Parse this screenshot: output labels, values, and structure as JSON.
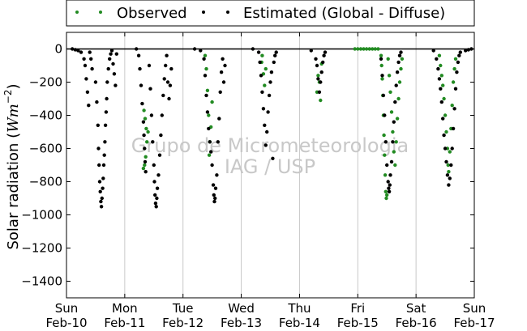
{
  "chart_data": {
    "type": "scatter",
    "title": "",
    "xlabel": "",
    "ylabel": "Solar radiation",
    "ylabel_unit_base": "Wm",
    "ylabel_unit_exp": "−2",
    "ylim": [
      -1500,
      100
    ],
    "yticks": [
      0,
      -200,
      -400,
      -600,
      -800,
      -1000,
      -1200,
      -1400
    ],
    "xlim_days": [
      0,
      7
    ],
    "xticks": [
      {
        "day": "Sun",
        "date": "Feb-10"
      },
      {
        "day": "Mon",
        "date": "Feb-11"
      },
      {
        "day": "Tue",
        "date": "Feb-12"
      },
      {
        "day": "Wed",
        "date": "Feb-13"
      },
      {
        "day": "Thu",
        "date": "Feb-14"
      },
      {
        "day": "Fri",
        "date": "Feb-15"
      },
      {
        "day": "Sat",
        "date": "Feb-16"
      },
      {
        "day": "Sun",
        "date": "Feb-17"
      }
    ],
    "grid": "vertical",
    "legend": "top",
    "watermark": [
      "Grupo de Micrometeorologia",
      "IAG / USP"
    ],
    "series": [
      {
        "name": "Observed",
        "color": "#228b22",
        "marker": "dot",
        "points": [
          [
            1.33,
            -370
          ],
          [
            1.35,
            -420
          ],
          [
            1.37,
            -480
          ],
          [
            1.34,
            -700
          ],
          [
            1.36,
            -650
          ],
          [
            1.38,
            -560
          ],
          [
            1.4,
            -500
          ],
          [
            1.32,
            -720
          ],
          [
            2.38,
            -40
          ],
          [
            2.4,
            -120
          ],
          [
            2.42,
            -250
          ],
          [
            2.44,
            -400
          ],
          [
            2.46,
            -560
          ],
          [
            2.45,
            -640
          ],
          [
            2.48,
            -470
          ],
          [
            2.5,
            -320
          ],
          [
            3.35,
            -80
          ],
          [
            3.38,
            -150
          ],
          [
            3.4,
            -220
          ],
          [
            3.42,
            -120
          ],
          [
            3.36,
            -40
          ],
          [
            4.32,
            -160
          ],
          [
            4.34,
            -200
          ],
          [
            4.36,
            -310
          ],
          [
            4.3,
            -260
          ],
          [
            4.38,
            -90
          ],
          [
            4.95,
            0
          ],
          [
            5.0,
            0
          ],
          [
            5.05,
            0
          ],
          [
            5.1,
            0
          ],
          [
            5.15,
            0
          ],
          [
            5.2,
            0
          ],
          [
            5.25,
            0
          ],
          [
            5.3,
            0
          ],
          [
            5.35,
            0
          ],
          [
            5.4,
            -40
          ],
          [
            5.41,
            -100
          ],
          [
            5.42,
            -180
          ],
          [
            5.43,
            -280
          ],
          [
            5.44,
            -400
          ],
          [
            5.45,
            -520
          ],
          [
            5.46,
            -640
          ],
          [
            5.47,
            -760
          ],
          [
            5.48,
            -860
          ],
          [
            5.49,
            -900
          ],
          [
            5.5,
            -880
          ],
          [
            5.52,
            -60
          ],
          [
            5.54,
            -160
          ],
          [
            5.56,
            -260
          ],
          [
            5.58,
            -380
          ],
          [
            5.6,
            -500
          ],
          [
            5.62,
            -620
          ],
          [
            5.64,
            -700
          ],
          [
            5.66,
            -560
          ],
          [
            5.68,
            -420
          ],
          [
            5.7,
            -300
          ],
          [
            5.72,
            -200
          ],
          [
            5.74,
            -120
          ],
          [
            5.76,
            -60
          ],
          [
            6.4,
            -40
          ],
          [
            6.42,
            -100
          ],
          [
            6.44,
            -160
          ],
          [
            6.46,
            -220
          ],
          [
            6.48,
            -300
          ],
          [
            6.5,
            -400
          ],
          [
            6.52,
            -500
          ],
          [
            6.54,
            -600
          ],
          [
            6.55,
            -700
          ],
          [
            6.56,
            -740
          ],
          [
            6.58,
            -620
          ],
          [
            6.6,
            -480
          ],
          [
            6.62,
            -340
          ],
          [
            6.64,
            -200
          ],
          [
            6.66,
            -120
          ],
          [
            6.68,
            -60
          ]
        ]
      },
      {
        "name": "Estimated (Global - Diffuse)",
        "color": "#000000",
        "marker": "dot",
        "points": [
          [
            0.1,
            0
          ],
          [
            0.15,
            -5
          ],
          [
            0.2,
            -10
          ],
          [
            0.25,
            -20
          ],
          [
            0.3,
            -60
          ],
          [
            0.32,
            -100
          ],
          [
            0.34,
            -180
          ],
          [
            0.36,
            -260
          ],
          [
            0.38,
            -340
          ],
          [
            0.4,
            -20
          ],
          [
            0.42,
            -60
          ],
          [
            0.44,
            -120
          ],
          [
            0.5,
            -200
          ],
          [
            0.52,
            -320
          ],
          [
            0.54,
            -460
          ],
          [
            0.55,
            -600
          ],
          [
            0.56,
            -700
          ],
          [
            0.57,
            -800
          ],
          [
            0.58,
            -860
          ],
          [
            0.59,
            -920
          ],
          [
            0.6,
            -950
          ],
          [
            0.61,
            -900
          ],
          [
            0.62,
            -840
          ],
          [
            0.63,
            -780
          ],
          [
            0.64,
            -700
          ],
          [
            0.65,
            -640
          ],
          [
            0.66,
            -560
          ],
          [
            0.67,
            -460
          ],
          [
            0.68,
            -380
          ],
          [
            0.69,
            -300
          ],
          [
            0.7,
            -200
          ],
          [
            0.72,
            -120
          ],
          [
            0.74,
            -60
          ],
          [
            0.76,
            -30
          ],
          [
            0.78,
            -10
          ],
          [
            0.8,
            -90
          ],
          [
            0.82,
            -150
          ],
          [
            0.84,
            -220
          ],
          [
            0.86,
            -30
          ],
          [
            1.2,
            0
          ],
          [
            1.24,
            -40
          ],
          [
            1.26,
            -120
          ],
          [
            1.28,
            -220
          ],
          [
            1.3,
            -330
          ],
          [
            1.32,
            -440
          ],
          [
            1.33,
            -520
          ],
          [
            1.34,
            -600
          ],
          [
            1.35,
            -680
          ],
          [
            1.36,
            -740
          ],
          [
            1.42,
            -100
          ],
          [
            1.44,
            -240
          ],
          [
            1.46,
            -400
          ],
          [
            1.48,
            -560
          ],
          [
            1.5,
            -700
          ],
          [
            1.51,
            -800
          ],
          [
            1.52,
            -880
          ],
          [
            1.53,
            -930
          ],
          [
            1.54,
            -950
          ],
          [
            1.55,
            -900
          ],
          [
            1.56,
            -840
          ],
          [
            1.58,
            -760
          ],
          [
            1.6,
            -640
          ],
          [
            1.62,
            -520
          ],
          [
            1.64,
            -400
          ],
          [
            1.66,
            -280
          ],
          [
            1.68,
            -180
          ],
          [
            1.7,
            -100
          ],
          [
            1.72,
            -40
          ],
          [
            1.74,
            -200
          ],
          [
            1.76,
            -300
          ],
          [
            1.78,
            -220
          ],
          [
            1.8,
            -120
          ],
          [
            2.2,
            0
          ],
          [
            2.3,
            -10
          ],
          [
            2.36,
            -60
          ],
          [
            2.38,
            -160
          ],
          [
            2.4,
            -280
          ],
          [
            2.42,
            -380
          ],
          [
            2.44,
            -480
          ],
          [
            2.46,
            -560
          ],
          [
            2.48,
            -620
          ],
          [
            2.5,
            -700
          ],
          [
            2.52,
            -820
          ],
          [
            2.53,
            -880
          ],
          [
            2.54,
            -920
          ],
          [
            2.55,
            -900
          ],
          [
            2.56,
            -840
          ],
          [
            2.58,
            -760
          ],
          [
            2.6,
            -560
          ],
          [
            2.62,
            -420
          ],
          [
            2.64,
            -260
          ],
          [
            2.66,
            -140
          ],
          [
            2.68,
            -60
          ],
          [
            2.7,
            -200
          ],
          [
            2.72,
            -100
          ],
          [
            3.2,
            0
          ],
          [
            3.3,
            -20
          ],
          [
            3.32,
            -80
          ],
          [
            3.34,
            -160
          ],
          [
            3.36,
            -260
          ],
          [
            3.38,
            -360
          ],
          [
            3.4,
            -460
          ],
          [
            3.42,
            -580
          ],
          [
            3.44,
            -500
          ],
          [
            3.46,
            -380
          ],
          [
            3.48,
            -280
          ],
          [
            3.5,
            -200
          ],
          [
            3.52,
            -140
          ],
          [
            3.54,
            -660
          ],
          [
            3.56,
            -80
          ],
          [
            3.58,
            -40
          ],
          [
            3.6,
            -20
          ],
          [
            4.2,
            -10
          ],
          [
            4.28,
            -60
          ],
          [
            4.3,
            -100
          ],
          [
            4.32,
            -180
          ],
          [
            4.34,
            -260
          ],
          [
            4.36,
            -200
          ],
          [
            4.38,
            -140
          ],
          [
            4.4,
            -80
          ],
          [
            4.42,
            -40
          ],
          [
            4.44,
            -20
          ],
          [
            5.4,
            -60
          ],
          [
            5.42,
            -160
          ],
          [
            5.44,
            -280
          ],
          [
            5.46,
            -400
          ],
          [
            5.48,
            -560
          ],
          [
            5.5,
            -700
          ],
          [
            5.52,
            -800
          ],
          [
            5.53,
            -840
          ],
          [
            5.54,
            -860
          ],
          [
            5.55,
            -820
          ],
          [
            5.56,
            -760
          ],
          [
            5.58,
            -680
          ],
          [
            5.6,
            -560
          ],
          [
            5.62,
            -440
          ],
          [
            5.64,
            -320
          ],
          [
            5.66,
            -220
          ],
          [
            5.68,
            -140
          ],
          [
            5.7,
            -80
          ],
          [
            5.72,
            -40
          ],
          [
            5.74,
            -20
          ],
          [
            6.3,
            -10
          ],
          [
            6.35,
            -60
          ],
          [
            6.38,
            -120
          ],
          [
            6.4,
            -180
          ],
          [
            6.42,
            -240
          ],
          [
            6.44,
            -320
          ],
          [
            6.46,
            -420
          ],
          [
            6.48,
            -520
          ],
          [
            6.5,
            -600
          ],
          [
            6.52,
            -680
          ],
          [
            6.54,
            -760
          ],
          [
            6.56,
            -820
          ],
          [
            6.58,
            -780
          ],
          [
            6.6,
            -700
          ],
          [
            6.62,
            -600
          ],
          [
            6.64,
            -480
          ],
          [
            6.66,
            -360
          ],
          [
            6.68,
            -240
          ],
          [
            6.7,
            -140
          ],
          [
            6.72,
            -80
          ],
          [
            6.74,
            -40
          ],
          [
            6.76,
            -20
          ],
          [
            6.85,
            -10
          ],
          [
            6.9,
            -5
          ],
          [
            6.95,
            0
          ]
        ]
      }
    ]
  }
}
